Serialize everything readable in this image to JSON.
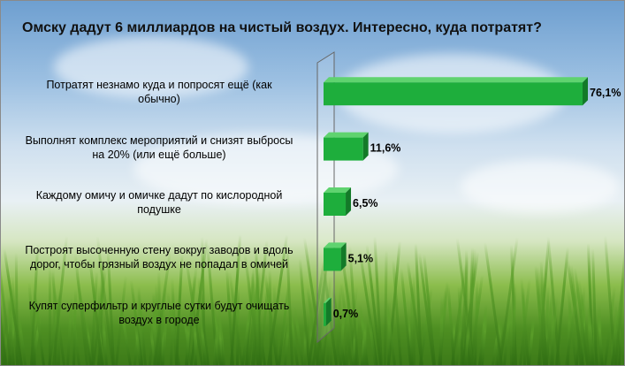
{
  "chart_data": {
    "type": "bar",
    "orientation": "horizontal",
    "title": "Омску дадут 6 миллиардов на чистый воздух. Интересно, куда потратят?",
    "categories": [
      [
        "Потратят незнамо куда и попросят ещё (как",
        "обычно)"
      ],
      [
        "Выполнят комплекс мероприятий и снизят выбросы",
        "на 20% (или ещё больше)"
      ],
      [
        "Каждому омичу и омичке дадут по кислородной",
        "подушке"
      ],
      [
        "Построят высоченную стену вокруг заводов и вдоль",
        "дорог, чтобы грязный воздух не попадал в омичей"
      ],
      [
        "Купят суперфильтр и круглые сутки будут очищать",
        "воздух в городе"
      ]
    ],
    "values": [
      76.1,
      11.6,
      6.5,
      5.1,
      0.7
    ],
    "data_labels": [
      "76,1%",
      "11,6%",
      "6,5%",
      "5,1%",
      "0,7%"
    ],
    "xlim": [
      0,
      76.1
    ],
    "bar_color": "#1eae3c",
    "grid": false,
    "legend": "none"
  }
}
